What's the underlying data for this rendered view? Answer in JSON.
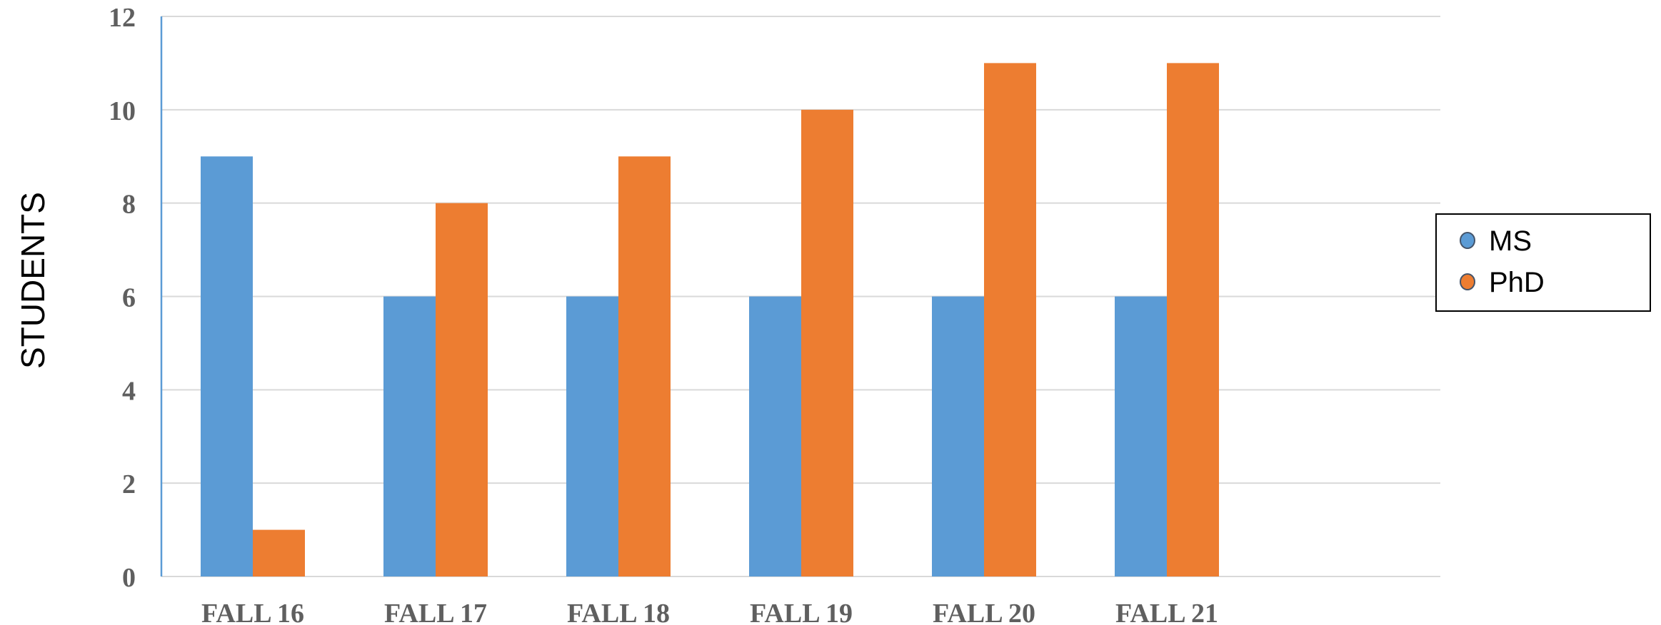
{
  "chart_data": {
    "type": "bar",
    "categories": [
      "FALL 16",
      "FALL 17",
      "FALL 18",
      "FALL 19",
      "FALL 20",
      "FALL 21"
    ],
    "series": [
      {
        "name": "MS",
        "values": [
          9,
          6,
          6,
          6,
          6,
          6
        ],
        "color": "#5b9bd5"
      },
      {
        "name": "PhD",
        "values": [
          1,
          8,
          9,
          10,
          11,
          11
        ],
        "color": "#ed7d31"
      }
    ],
    "title": "",
    "xlabel": "",
    "ylabel": "STUDENTS",
    "ylim": [
      0,
      12
    ],
    "yticks": [
      "0",
      "2",
      "4",
      "6",
      "8",
      "10",
      "12"
    ],
    "grid": true,
    "legend_position": "right"
  }
}
